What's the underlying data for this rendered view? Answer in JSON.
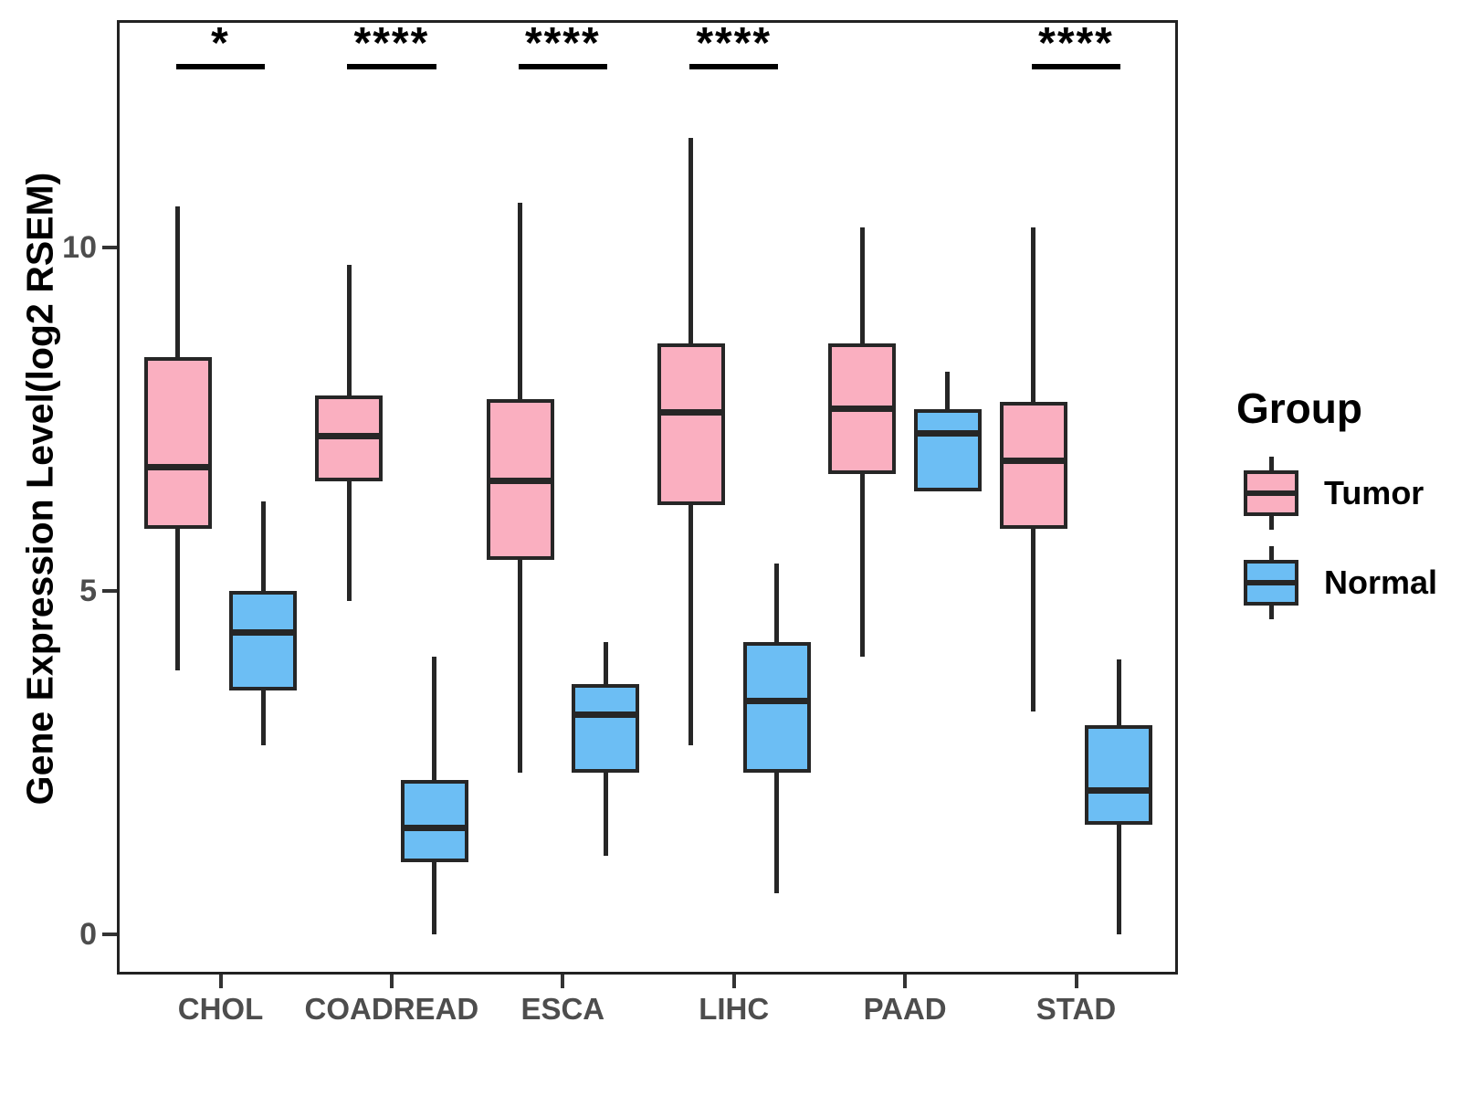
{
  "chart_data": {
    "type": "boxplot",
    "ylabel": "Gene Expression Level(log2 RSEM)",
    "xlabel": "",
    "categories": [
      "CHOL",
      "COADREAD",
      "ESCA",
      "LIHC",
      "PAAD",
      "STAD"
    ],
    "y_ticks": [
      0,
      5,
      10
    ],
    "ylim": [
      -0.6,
      13.3
    ],
    "grid": false,
    "legend_position": "right",
    "legend": {
      "title": "Group",
      "entries": [
        {
          "label": "Tumor",
          "color": "#FAAFC0"
        },
        {
          "label": "Normal",
          "color": "#6CBEF4"
        }
      ]
    },
    "series": [
      {
        "name": "Tumor",
        "color": "#FAAFC0",
        "boxes": [
          {
            "category": "CHOL",
            "min": 3.85,
            "q1": 5.9,
            "median": 6.8,
            "q3": 8.4,
            "max": 10.6
          },
          {
            "category": "COADREAD",
            "min": 4.85,
            "q1": 6.6,
            "median": 7.25,
            "q3": 7.85,
            "max": 9.75
          },
          {
            "category": "ESCA",
            "min": 2.35,
            "q1": 5.45,
            "median": 6.6,
            "q3": 7.8,
            "max": 10.65
          },
          {
            "category": "LIHC",
            "min": 2.75,
            "q1": 6.25,
            "median": 7.6,
            "q3": 8.6,
            "max": 11.6
          },
          {
            "category": "PAAD",
            "min": 4.05,
            "q1": 6.7,
            "median": 7.65,
            "q3": 8.6,
            "max": 10.3
          },
          {
            "category": "STAD",
            "min": 3.25,
            "q1": 5.9,
            "median": 6.9,
            "q3": 7.75,
            "max": 10.3
          }
        ]
      },
      {
        "name": "Normal",
        "color": "#6CBEF4",
        "boxes": [
          {
            "category": "CHOL",
            "min": 2.75,
            "q1": 3.55,
            "median": 4.4,
            "q3": 5.0,
            "max": 6.3
          },
          {
            "category": "COADREAD",
            "min": 0.0,
            "q1": 1.05,
            "median": 1.55,
            "q3": 2.25,
            "max": 4.05
          },
          {
            "category": "ESCA",
            "min": 1.15,
            "q1": 2.35,
            "median": 3.2,
            "q3": 3.65,
            "max": 4.25
          },
          {
            "category": "LIHC",
            "min": 0.6,
            "q1": 2.35,
            "median": 3.4,
            "q3": 4.25,
            "max": 5.4
          },
          {
            "category": "PAAD",
            "min": 6.45,
            "q1": 6.45,
            "median": 7.3,
            "q3": 7.65,
            "max": 8.2
          },
          {
            "category": "STAD",
            "min": 0.0,
            "q1": 1.6,
            "median": 2.1,
            "q3": 3.05,
            "max": 4.0
          }
        ]
      }
    ],
    "significance": [
      {
        "category": "CHOL",
        "label": "*"
      },
      {
        "category": "COADREAD",
        "label": "****"
      },
      {
        "category": "ESCA",
        "label": "****"
      },
      {
        "category": "LIHC",
        "label": "****"
      },
      {
        "category": "STAD",
        "label": "****"
      }
    ]
  }
}
